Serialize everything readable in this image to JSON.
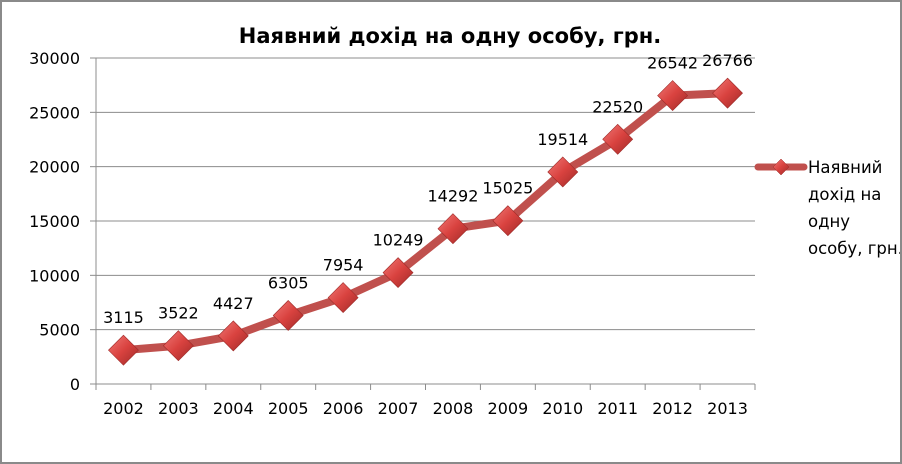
{
  "chart_data": {
    "type": "line",
    "title": "Наявний дохід на одну особу, грн.",
    "xlabel": "",
    "ylabel": "",
    "categories": [
      "2002",
      "2003",
      "2004",
      "2005",
      "2006",
      "2007",
      "2008",
      "2009",
      "2010",
      "2011",
      "2012",
      "2013"
    ],
    "series": [
      {
        "name": "Наявний дохід на одну особу, грн.",
        "values": [
          3115,
          3522,
          4427,
          6305,
          7954,
          10249,
          14292,
          15025,
          19514,
          22520,
          26542,
          26766
        ],
        "color": "#c0504d",
        "marker": "diamond"
      }
    ],
    "ylim": [
      0,
      30000
    ],
    "yticks": [
      0,
      5000,
      10000,
      15000,
      20000,
      25000,
      30000
    ],
    "grid": true,
    "legend": "right",
    "data_labels": true
  },
  "legend_text": "Наявний дохід на одну особу, грн."
}
